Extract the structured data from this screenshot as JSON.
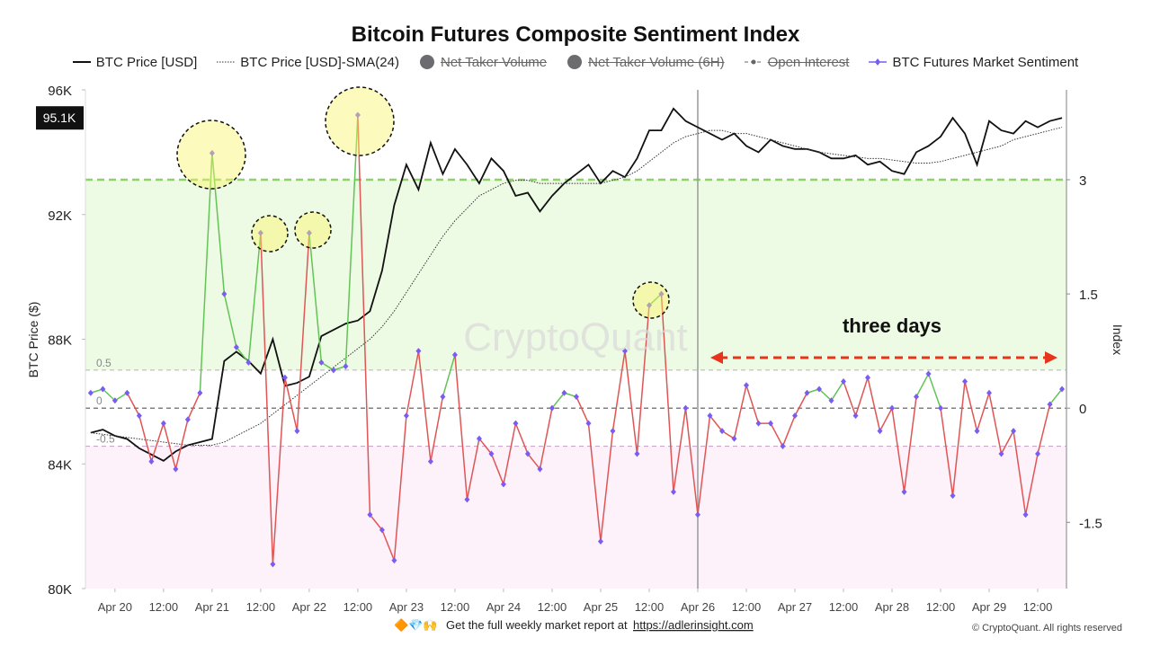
{
  "chart_data": {
    "type": "line",
    "title": "Bitcoin Futures Composite Sentiment Index",
    "y_label": "BTC Price ($)",
    "y2_label": "Index",
    "watermark": "CryptoQuant",
    "annotation": "three days",
    "x": [
      -6,
      -3,
      0,
      3,
      6,
      9,
      12,
      15,
      18,
      21,
      24,
      27,
      30,
      33,
      36,
      39,
      42,
      45,
      48,
      51,
      54,
      57,
      60,
      63,
      66,
      69,
      72,
      75,
      78,
      81,
      84,
      87,
      90,
      93,
      96,
      99,
      102,
      105,
      108,
      111,
      114,
      117,
      120,
      123,
      126,
      129,
      132,
      135,
      138,
      141,
      144,
      147,
      150,
      153,
      156,
      159,
      162,
      165,
      168,
      171,
      174,
      177,
      180,
      183,
      186,
      189,
      192,
      195,
      198,
      201,
      204,
      207,
      210,
      213,
      216,
      219,
      222,
      225,
      228,
      231,
      234
    ],
    "xlim": [
      -7.3,
      235.1
    ],
    "xticks": [
      {
        "value": 0,
        "label": "Apr 20"
      },
      {
        "value": 12,
        "label": "12:00"
      },
      {
        "value": 24,
        "label": "Apr 21"
      },
      {
        "value": 36,
        "label": "12:00"
      },
      {
        "value": 48,
        "label": "Apr 22"
      },
      {
        "value": 60,
        "label": "12:00"
      },
      {
        "value": 72,
        "label": "Apr 23"
      },
      {
        "value": 84,
        "label": "12:00"
      },
      {
        "value": 96,
        "label": "Apr 24"
      },
      {
        "value": 108,
        "label": "12:00"
      },
      {
        "value": 120,
        "label": "Apr 25"
      },
      {
        "value": 132,
        "label": "12:00"
      },
      {
        "value": 144,
        "label": "Apr 26"
      },
      {
        "value": 156,
        "label": "12:00"
      },
      {
        "value": 168,
        "label": "Apr 27"
      },
      {
        "value": 180,
        "label": "12:00"
      },
      {
        "value": 192,
        "label": "Apr 28"
      },
      {
        "value": 204,
        "label": "12:00"
      },
      {
        "value": 216,
        "label": "Apr 29"
      },
      {
        "value": 228,
        "label": "12:00"
      }
    ],
    "ylim": [
      80000,
      96000
    ],
    "yticks": [
      {
        "value": 80000,
        "label": "80K"
      },
      {
        "value": 84000,
        "label": "84K"
      },
      {
        "value": 88000,
        "label": "88K"
      },
      {
        "value": 92000,
        "label": "92K"
      },
      {
        "value": 96000,
        "label": "96K"
      }
    ],
    "y2lim": [
      -2.37,
      4.18
    ],
    "y2ticks": [
      {
        "value": -1.5,
        "label": "-1.5"
      },
      0,
      1.5,
      3
    ],
    "last_price": {
      "value": 95100,
      "label": "95.1K"
    },
    "reference_lines": [
      {
        "value": 0.5,
        "label": "0.5",
        "color": "#bbb"
      },
      {
        "value": 0,
        "label": "0",
        "color": "#555"
      },
      {
        "value": -0.5,
        "label": "-0.5",
        "color": "#c9a8c9"
      },
      {
        "value": 3,
        "color": "#8fd16a"
      }
    ],
    "zones": [
      {
        "from": 0.5,
        "to": 3,
        "color": "#eefbe4"
      },
      {
        "below": -0.5,
        "color": "#fdf1fa"
      }
    ],
    "vlines": [
      144
    ],
    "series": [
      {
        "name": "BTC Price [USD]",
        "color": "#111",
        "style": "solid",
        "values": [
          85000,
          85100,
          84900,
          84800,
          84500,
          84300,
          84100,
          84400,
          84600,
          84700,
          84800,
          87300,
          87600,
          87300,
          86900,
          88000,
          86500,
          86600,
          86800,
          88100,
          88300,
          88500,
          88600,
          88900,
          90200,
          92300,
          93600,
          92800,
          94300,
          93300,
          94100,
          93600,
          93000,
          93800,
          93400,
          92600,
          92700,
          92100,
          92600,
          93000,
          93300,
          93600,
          93000,
          93400,
          93200,
          93800,
          94700,
          94700,
          95400,
          95000,
          94800,
          94600,
          94400,
          94600,
          94200,
          94000,
          94400,
          94200,
          94100,
          94100,
          94000,
          93800,
          93800,
          93900,
          93600,
          93700,
          93400,
          93300,
          94000,
          94200,
          94500,
          95100,
          94600,
          93600,
          95000,
          94700,
          94600,
          95000,
          94800,
          95000,
          95100
        ]
      },
      {
        "name": "BTC Price [USD]-SMA(24)",
        "color": "#333",
        "style": "dotted",
        "values": [
          85000,
          84950,
          84900,
          84850,
          84800,
          84750,
          84700,
          84650,
          84600,
          84600,
          84600,
          84700,
          84900,
          85100,
          85300,
          85600,
          85900,
          86200,
          86500,
          86800,
          87100,
          87400,
          87700,
          88000,
          88400,
          88900,
          89500,
          90100,
          90700,
          91300,
          91800,
          92200,
          92600,
          92800,
          93000,
          93100,
          93100,
          93000,
          93000,
          93000,
          93000,
          93000,
          93000,
          93100,
          93200,
          93400,
          93700,
          94000,
          94300,
          94500,
          94600,
          94700,
          94700,
          94600,
          94600,
          94500,
          94400,
          94300,
          94200,
          94100,
          94000,
          93950,
          93900,
          93850,
          93800,
          93800,
          93750,
          93700,
          93650,
          93650,
          93700,
          93800,
          93900,
          94000,
          94100,
          94200,
          94400,
          94500,
          94600,
          94700,
          94800
        ]
      },
      {
        "name": "Net Taker Volume",
        "color": "#6b6b70",
        "style": "dot",
        "visible": false
      },
      {
        "name": "Net Taker Volume (6H)",
        "color": "#6b6b70",
        "style": "dot",
        "visible": false
      },
      {
        "name": "Open Interest",
        "color": "#666",
        "style": "dashdot",
        "visible": false
      },
      {
        "name": "BTC Futures Market Sentiment",
        "color": "#7b5cf0",
        "up_color": "#62c456",
        "down_color": "#e05555",
        "style": "marker",
        "axis": "y2",
        "values": [
          0.2,
          0.25,
          0.1,
          0.2,
          -0.1,
          -0.7,
          -0.2,
          -0.8,
          -0.15,
          0.2,
          3.35,
          1.5,
          0.8,
          0.6,
          2.3,
          -2.05,
          0.4,
          -0.3,
          2.3,
          0.6,
          0.5,
          0.55,
          3.85,
          -1.4,
          -1.6,
          -2.0,
          -0.1,
          0.75,
          -0.7,
          0.15,
          0.7,
          -1.2,
          -0.4,
          -0.6,
          -1.0,
          -0.2,
          -0.6,
          -0.8,
          0.0,
          0.2,
          0.15,
          -0.2,
          -1.75,
          -0.3,
          0.75,
          -0.6,
          1.35,
          1.5,
          -1.1,
          0.0,
          -1.4,
          -0.1,
          -0.3,
          -0.4,
          0.3,
          -0.2,
          -0.2,
          -0.5,
          -0.1,
          0.2,
          0.25,
          0.1,
          0.35,
          -0.1,
          0.4,
          -0.3,
          0.0,
          -1.1,
          0.15,
          0.45,
          0.0,
          -1.15,
          0.35,
          -0.3,
          0.2,
          -0.6,
          -0.3,
          -1.4,
          -0.6,
          0.05,
          0.25
        ]
      }
    ]
  },
  "footer": {
    "icons": "🔶💎🙌",
    "text": "Get the full weekly market report at",
    "link": "https://adlerinsight.com",
    "copyright": "© CryptoQuant. All rights reserved"
  }
}
